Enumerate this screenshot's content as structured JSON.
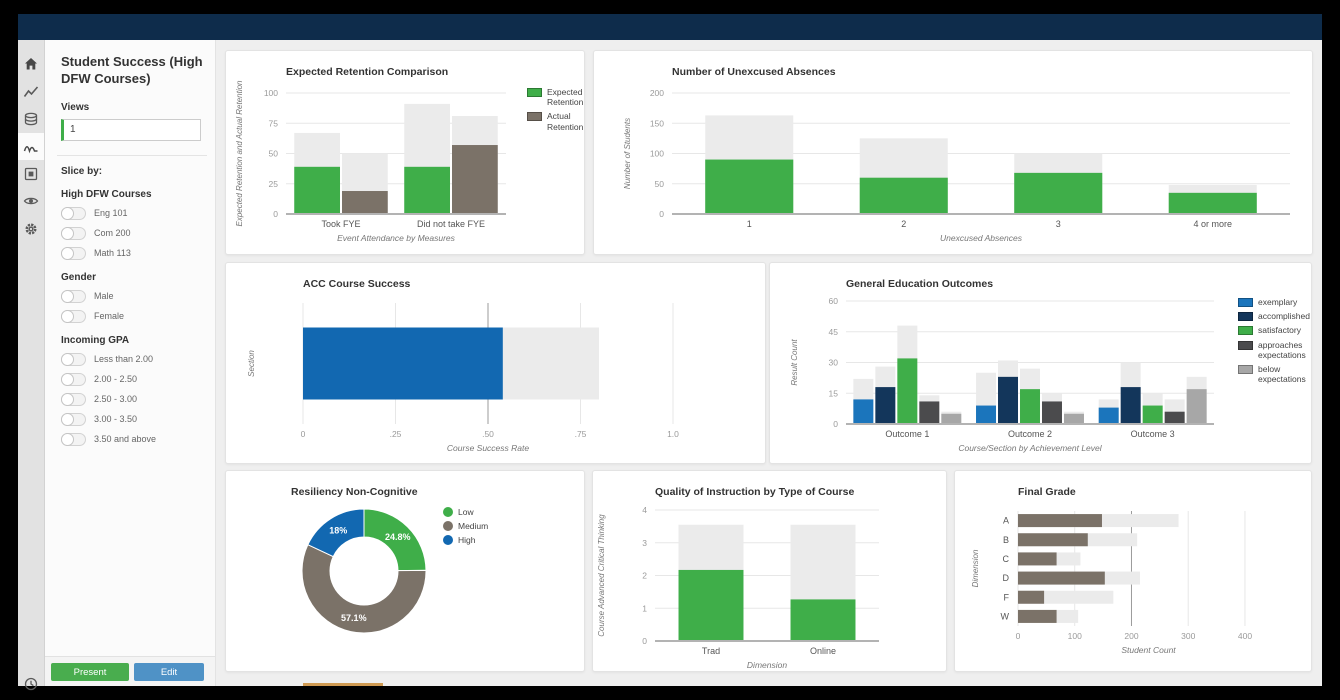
{
  "window": {
    "header_color": "#0e2c4b"
  },
  "rail": {
    "icons": [
      "home",
      "trend-line",
      "data-stack",
      "pulse-wave",
      "report",
      "eye",
      "gear"
    ],
    "active_icon": "pulse-wave",
    "bottom_icon": "clock"
  },
  "sidebar": {
    "title": "Student Success (High DFW Courses)",
    "views_label": "Views",
    "views_value": "1",
    "slice_by_label": "Slice by:",
    "filter_groups": [
      {
        "label": "High DFW Courses",
        "options": [
          "Eng 101",
          "Com 200",
          "Math 113"
        ]
      },
      {
        "label": "Gender",
        "options": [
          "Male",
          "Female"
        ]
      },
      {
        "label": "Incoming GPA",
        "options": [
          "Less than 2.00",
          "2.00 - 2.50",
          "2.50 - 3.00",
          "3.00 - 3.50",
          "3.50 and above"
        ]
      }
    ],
    "present_button": "Present",
    "edit_button": "Edit"
  },
  "colors": {
    "green": "#3fae49",
    "gray_brown": "#7b7268",
    "blue": "#1268b1",
    "navy": "#13365b",
    "dark_gray": "#4b4b4d",
    "light_gray": "#a7a7a7",
    "bar_background": "#ebebeb"
  },
  "chart_data": [
    {
      "type": "bar",
      "title": "Expected Retention Comparison",
      "xlabel": "Event Attendance by Measures",
      "ylabel": "Expected Retention and Actual Retention",
      "ylim": [
        0,
        100
      ],
      "yticks": [
        0,
        25,
        50,
        75,
        100
      ],
      "categories": [
        "Took FYE",
        "Did not take FYE"
      ],
      "series": [
        {
          "name": "Expected Retention",
          "color": "#3fae49",
          "values": [
            39,
            39
          ],
          "backgrounds": [
            67,
            91
          ]
        },
        {
          "name": "Actual Retention",
          "color": "#7b7268",
          "values": [
            19,
            57
          ],
          "backgrounds": [
            50,
            81
          ]
        }
      ],
      "legend": true,
      "legend_position": "right"
    },
    {
      "type": "bar",
      "title": "Number of Unexcused Absences",
      "xlabel": "Unexcused Absences",
      "ylabel": "Number of Students",
      "ylim": [
        0,
        200
      ],
      "yticks": [
        0,
        50,
        100,
        150,
        200
      ],
      "categories": [
        "1",
        "2",
        "3",
        "4 or more"
      ],
      "series": [
        {
          "name": "Number of Students",
          "color": "#3fae49",
          "values": [
            90,
            60,
            68,
            35
          ],
          "backgrounds": [
            163,
            125,
            100,
            48
          ]
        }
      ],
      "legend": false
    },
    {
      "type": "bar-horizontal",
      "title": "ACC Course Success",
      "xlabel": "Course Success Rate",
      "ylabel": "Section",
      "xlim": [
        0,
        1
      ],
      "xticks": [
        0,
        0.25,
        0.5,
        0.75,
        1.0
      ],
      "xtick_labels": [
        "0",
        ".25",
        ".50",
        ".75",
        "1.0"
      ],
      "ref_line": 0.5,
      "categories": [
        ""
      ],
      "series": [
        {
          "name": "Course Success Rate",
          "color": "#1268b1",
          "values": [
            0.54
          ],
          "backgrounds": [
            0.8
          ]
        }
      ],
      "legend": false
    },
    {
      "type": "bar",
      "title": "General Education Outcomes",
      "xlabel": "Course/Section by Achievement Level",
      "ylabel": "Result Count",
      "ylim": [
        0,
        60
      ],
      "yticks": [
        0,
        15,
        30,
        45,
        60
      ],
      "categories": [
        "Outcome 1",
        "Outcome 2",
        "Outcome 3"
      ],
      "series": [
        {
          "name": "exemplary",
          "color": "#1b75bc",
          "values": [
            12,
            9,
            8
          ],
          "backgrounds": [
            22,
            25,
            12
          ]
        },
        {
          "name": "accomplished",
          "color": "#13365b",
          "values": [
            18,
            23,
            18
          ],
          "backgrounds": [
            28,
            31,
            30
          ]
        },
        {
          "name": "satisfactory",
          "color": "#3fae49",
          "values": [
            32,
            17,
            9
          ],
          "backgrounds": [
            48,
            27,
            15
          ]
        },
        {
          "name": "approaches expectations",
          "color": "#4b4b4d",
          "values": [
            11,
            11,
            6
          ],
          "backgrounds": [
            14,
            15,
            12
          ]
        },
        {
          "name": "below expectations",
          "color": "#a7a7a7",
          "values": [
            5,
            5,
            17
          ],
          "backgrounds": [
            6,
            6,
            23
          ]
        }
      ],
      "legend": true,
      "legend_position": "right"
    },
    {
      "type": "pie",
      "title": "Resiliency Non-Cognitive",
      "donut": true,
      "slices": [
        {
          "label": "Low",
          "value": 24.8,
          "display": "24.8%",
          "color": "#3fae49"
        },
        {
          "label": "Medium",
          "value": 57.1,
          "display": "57.1%",
          "color": "#7b7268"
        },
        {
          "label": "High",
          "value": 18,
          "display": "18%",
          "color": "#1268b1"
        }
      ],
      "legend": true,
      "legend_position": "right"
    },
    {
      "type": "bar",
      "title": "Quality of Instruction by Type of Course",
      "xlabel": "Dimension",
      "ylabel": "Course Advanced Critical Thinking",
      "ylim": [
        0,
        4
      ],
      "yticks": [
        0,
        1,
        2,
        3,
        4
      ],
      "categories": [
        "Trad",
        "Online"
      ],
      "series": [
        {
          "name": "Course Advanced Critical Thinking",
          "color": "#3fae49",
          "values": [
            2.17,
            1.27
          ],
          "backgrounds": [
            3.55,
            3.55
          ]
        }
      ],
      "legend": false
    },
    {
      "type": "bar-horizontal",
      "title": "Final Grade",
      "xlabel": "Student Count",
      "ylabel": "Dimension",
      "xlim": [
        0,
        460
      ],
      "xticks": [
        0,
        100,
        200,
        300,
        400
      ],
      "xtick_labels": [
        "0",
        "100",
        "200",
        "300",
        "400"
      ],
      "ref_line": 200,
      "categories": [
        "A",
        "B",
        "C",
        "D",
        "F",
        "W"
      ],
      "series": [
        {
          "name": "Student Count",
          "color": "#7b7268",
          "values": [
            148,
            123,
            68,
            153,
            46,
            68
          ],
          "backgrounds": [
            283,
            210,
            110,
            215,
            168,
            106
          ]
        }
      ],
      "legend": false
    }
  ]
}
